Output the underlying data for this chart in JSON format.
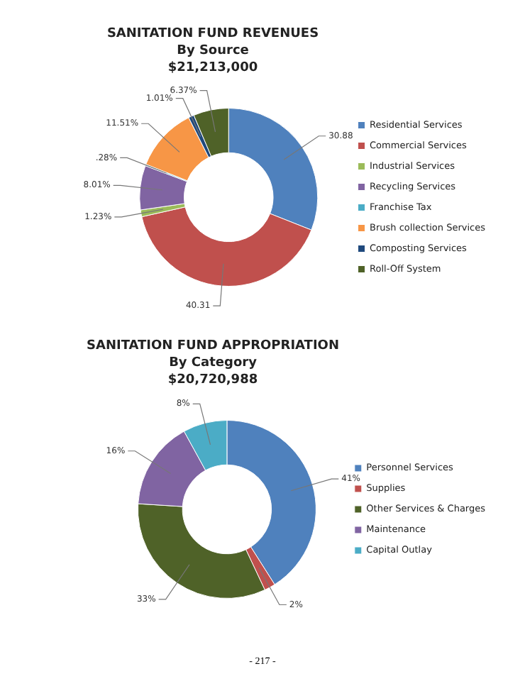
{
  "chart_data": [
    {
      "type": "donut",
      "title": "SANITATION FUND REVENUES",
      "subtitle": "By Source\n$21,213,000",
      "categories": [
        "Residential Services",
        "Commercial Services",
        "Industrial Services",
        "Recycling Services",
        "Franchise Tax",
        "Brush collection Services",
        "Composting Services",
        "Roll-Off System"
      ],
      "values": [
        30.88,
        40.31,
        1.23,
        8.01,
        0.28,
        11.51,
        1.01,
        6.37
      ],
      "value_labels": [
        "30.88",
        "40.31",
        "1.23%",
        "8.01%",
        ".28%",
        "11.51%",
        "1.01%",
        "6.37%"
      ],
      "colors": [
        "#4f81bd",
        "#c0504d",
        "#9bbb59",
        "#8064a2",
        "#4bacc6",
        "#f79646",
        "#1f497d",
        "#4f6228"
      ],
      "legend": "right"
    },
    {
      "type": "donut",
      "title": "SANITATION FUND APPROPRIATION",
      "subtitle": "By Category\n$20,720,988",
      "categories": [
        "Personnel Services",
        "Supplies",
        "Other Services & Charges",
        "Maintenance",
        "Capital Outlay"
      ],
      "values": [
        41,
        2,
        33,
        16,
        8
      ],
      "value_labels": [
        "41%",
        "2%",
        "33%",
        "16%",
        "8%"
      ],
      "colors": [
        "#4f81bd",
        "#c0504d",
        "#4f6228",
        "#8064a2",
        "#4bacc6"
      ],
      "legend": "right",
      "annotations": [
        "- 217 -"
      ]
    }
  ]
}
